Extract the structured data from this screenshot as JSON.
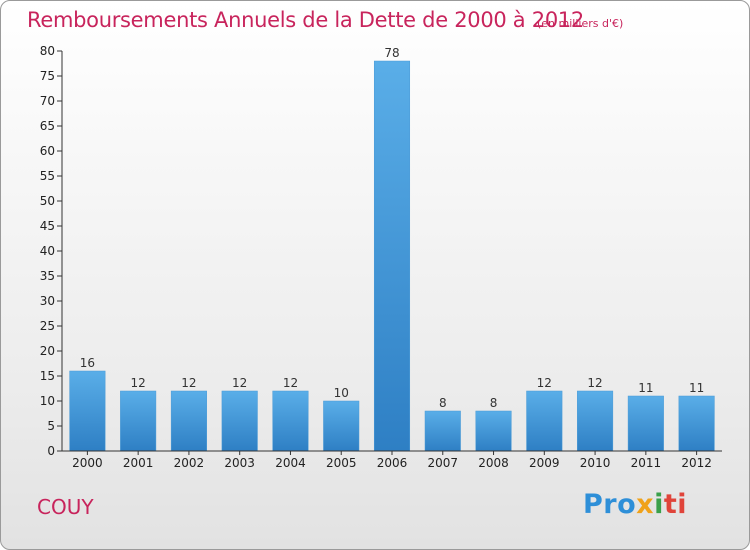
{
  "header": {
    "title": "Remboursements Annuels de la Dette de 2000 à 2012",
    "unit": "(en milliers d'€)"
  },
  "footer": {
    "commune": "COUY",
    "logo_parts": [
      "Pro",
      "x",
      "i",
      "ti"
    ]
  },
  "colors": {
    "title": "#c8245c",
    "bar_top": "#5aaee8",
    "bar_bottom": "#2e7fc4",
    "axis": "#333333"
  },
  "chart_data": {
    "type": "bar",
    "title": "Remboursements Annuels de la Dette de 2000 à 2012",
    "xlabel": "",
    "ylabel": "",
    "ylim": [
      0,
      80
    ],
    "yticks": [
      0,
      5,
      10,
      15,
      20,
      25,
      30,
      35,
      40,
      45,
      50,
      55,
      60,
      65,
      70,
      75,
      80
    ],
    "grid": false,
    "categories": [
      "2000",
      "2001",
      "2002",
      "2003",
      "2004",
      "2005",
      "2006",
      "2007",
      "2008",
      "2009",
      "2010",
      "2011",
      "2012"
    ],
    "values": [
      16,
      12,
      12,
      12,
      12,
      10,
      78,
      8,
      8,
      12,
      12,
      11,
      11
    ],
    "data_labels": [
      "16",
      "12",
      "12",
      "12",
      "12",
      "10",
      "78",
      "8",
      "8",
      "12",
      "12",
      "11",
      "11"
    ]
  }
}
